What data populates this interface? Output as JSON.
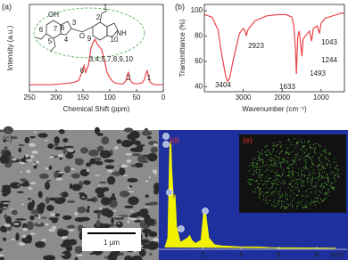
{
  "chart_data": [
    {
      "type": "line",
      "label": "(a)",
      "xlabel": "Chemical Shift (ppm)",
      "ylabel": "Intensity (a.u.)",
      "x": [
        250,
        230,
        210,
        190,
        175,
        165,
        158,
        152,
        148,
        145,
        140,
        135,
        130,
        127,
        124,
        120,
        115,
        110,
        105,
        100,
        95,
        90,
        80,
        75,
        70,
        67,
        65,
        62,
        58,
        50,
        40,
        35,
        32,
        30,
        28,
        25,
        20,
        15,
        10,
        5,
        0
      ],
      "series": [
        {
          "color": "#e8454a",
          "values": [
            8,
            8,
            8,
            9,
            10,
            11,
            13,
            22,
            30,
            22,
            30,
            50,
            58,
            60,
            55,
            52,
            48,
            36,
            22,
            16,
            12,
            10,
            9,
            9,
            12,
            20,
            22,
            14,
            10,
            9,
            10,
            14,
            22,
            24,
            18,
            11,
            9,
            8,
            8,
            8,
            8
          ]
        }
      ],
      "xlim": [
        250,
        0
      ],
      "ylim": [
        0,
        100
      ],
      "xticks": [
        250,
        200,
        150,
        100,
        50,
        0
      ],
      "annotations": [
        "6",
        "3,4,5,7,8,9,10",
        "2",
        "1"
      ],
      "structure_labels": [
        "OH",
        "O",
        "NH",
        "1",
        "2",
        "3",
        "4",
        "5",
        "6",
        "7",
        "8",
        "9",
        "10"
      ]
    },
    {
      "type": "line",
      "label": "(b)",
      "xlabel": "Wavenumber (cm⁻¹)",
      "ylabel": "Transmittance (%)",
      "x": [
        4000,
        3800,
        3650,
        3550,
        3450,
        3404,
        3350,
        3250,
        3100,
        3000,
        2950,
        2923,
        2880,
        2700,
        2400,
        2100,
        1900,
        1750,
        1700,
        1660,
        1633,
        1600,
        1560,
        1520,
        1493,
        1460,
        1400,
        1300,
        1244,
        1200,
        1100,
        1043,
        1000,
        900,
        800,
        700,
        600,
        500,
        400
      ],
      "series": [
        {
          "color": "#e8454a",
          "values": [
            97,
            95,
            85,
            65,
            48,
            44,
            47,
            62,
            82,
            86,
            84,
            80,
            85,
            92,
            96,
            97,
            97,
            95,
            88,
            70,
            50,
            80,
            84,
            72,
            64,
            78,
            80,
            84,
            76,
            86,
            88,
            82,
            90,
            94,
            95,
            96,
            97,
            98,
            98
          ]
        }
      ],
      "xlim": [
        4000,
        400
      ],
      "ylim": [
        36,
        105
      ],
      "xticks": [
        3000,
        2000,
        1000
      ],
      "yticks": [
        40,
        60,
        80,
        100
      ],
      "annotations": [
        "3404",
        "2923",
        "1633",
        "1493",
        "1244",
        "1043"
      ]
    },
    {
      "type": "area",
      "label": "(d)",
      "xlabel": "keV",
      "x": [
        0,
        0.15,
        0.25,
        0.3,
        0.35,
        0.45,
        0.52,
        0.6,
        0.8,
        1.0,
        1.2,
        1.3,
        1.4,
        1.6,
        1.9,
        2.05,
        2.15,
        2.3,
        2.6,
        3,
        4,
        5,
        6,
        7,
        8,
        9
      ],
      "series": [
        {
          "color": "#f2f200",
          "values": [
            2,
            10,
            90,
            95,
            70,
            40,
            48,
            20,
            6,
            8,
            10,
            12,
            8,
            5,
            8,
            35,
            30,
            10,
            4,
            3,
            2,
            2,
            1,
            1,
            1,
            1
          ]
        }
      ],
      "xlim": [
        0,
        9.6
      ],
      "ylim": [
        0,
        100
      ],
      "xticks": [
        2,
        4,
        6,
        8
      ]
    }
  ],
  "panel_c": {
    "label": "(c)",
    "scale_bar": "1 μm"
  },
  "panel_e": {
    "label": "(e)"
  }
}
